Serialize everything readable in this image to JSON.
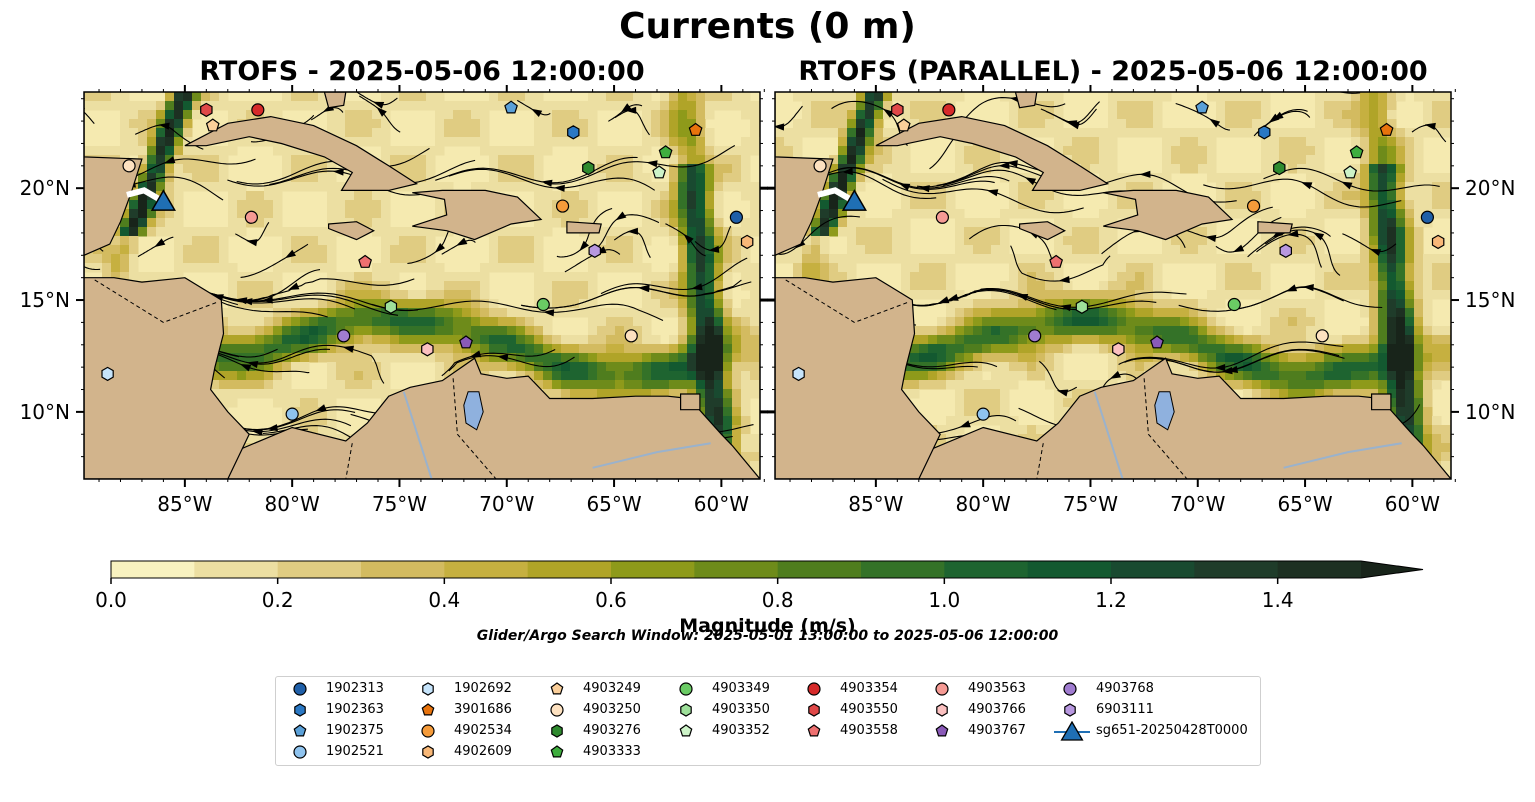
{
  "figure": {
    "title": "Currents (0 m)",
    "panels": [
      {
        "title": "RTOFS - 2025-05-06 12:00:00"
      },
      {
        "title": "RTOFS (PARALLEL) - 2025-05-06 12:00:00"
      }
    ],
    "x_ticks": [
      "85°W",
      "80°W",
      "75°W",
      "70°W",
      "65°W",
      "60°W"
    ],
    "y_ticks": [
      "20°N",
      "15°N",
      "10°N"
    ],
    "extent": {
      "lon_min": -89.7,
      "lon_max": -58.2,
      "lat_min": 7.0,
      "lat_max": 24.3
    },
    "colorbar": {
      "label": "Magnitude (m/s)",
      "ticks": [
        "0.0",
        "0.2",
        "0.4",
        "0.6",
        "0.8",
        "1.0",
        "1.2",
        "1.4"
      ],
      "min": 0.0,
      "max": 1.5,
      "extend": "max",
      "colors": [
        "#f8f2c0",
        "#ecdfa2",
        "#e0cc82",
        "#d3bb60",
        "#c6b040",
        "#b0a428",
        "#8e9a1a",
        "#6e8b1a",
        "#4f7d1e",
        "#347228",
        "#1e6430",
        "#135930",
        "#194a30",
        "#1f3c2a",
        "#1d3022",
        "#18241a"
      ]
    },
    "search_window": "Glider/Argo Search Window: 2025-05-01 13:00:00 to 2025-05-06 12:00:00",
    "colors": {
      "land": "#d2b48c",
      "lake": "#8fb1de",
      "water_low": "#f5eab0",
      "stream": "#000000"
    }
  },
  "legend": [
    {
      "label": "1902313",
      "marker": "circle",
      "color": "#1f5fa8"
    },
    {
      "label": "1902363",
      "marker": "hexagon",
      "color": "#2a78c4"
    },
    {
      "label": "1902375",
      "marker": "pentagon",
      "color": "#5aa0d8"
    },
    {
      "label": "1902521",
      "marker": "circle",
      "color": "#8fc3ee"
    },
    {
      "label": "1902692",
      "marker": "hexagon",
      "color": "#c6e4fb"
    },
    {
      "label": "3901686",
      "marker": "pentagon",
      "color": "#e8730c"
    },
    {
      "label": "4902534",
      "marker": "circle",
      "color": "#f59b3a"
    },
    {
      "label": "4902609",
      "marker": "hexagon",
      "color": "#f8b878"
    },
    {
      "label": "4903249",
      "marker": "pentagon",
      "color": "#fbcf9a"
    },
    {
      "label": "4903250",
      "marker": "circle",
      "color": "#fde1c0"
    },
    {
      "label": "4903276",
      "marker": "hexagon",
      "color": "#2f8a2f"
    },
    {
      "label": "4903333",
      "marker": "pentagon",
      "color": "#3fae3f"
    },
    {
      "label": "4903349",
      "marker": "circle",
      "color": "#6acb64"
    },
    {
      "label": "4903350",
      "marker": "hexagon",
      "color": "#9ee09a"
    },
    {
      "label": "4903352",
      "marker": "pentagon",
      "color": "#cdf3c8"
    },
    {
      "label": "4903354",
      "marker": "circle",
      "color": "#d62a2a"
    },
    {
      "label": "4903550",
      "marker": "hexagon",
      "color": "#e04848"
    },
    {
      "label": "4903558",
      "marker": "pentagon",
      "color": "#ee7070"
    },
    {
      "label": "4903563",
      "marker": "circle",
      "color": "#f59a94"
    },
    {
      "label": "4903766",
      "marker": "hexagon",
      "color": "#fbc0c0"
    },
    {
      "label": "4903767",
      "marker": "pentagon",
      "color": "#8a5ab8"
    },
    {
      "label": "4903768",
      "marker": "circle",
      "color": "#a07cd0"
    },
    {
      "label": "6903111",
      "marker": "hexagon",
      "color": "#b898e0"
    },
    {
      "label": "sg651-20250428T0000",
      "marker": "triangle",
      "color": "#1f6fb4"
    }
  ],
  "floats": [
    {
      "id": "1902313",
      "lon": -59.3,
      "lat": 18.7
    },
    {
      "id": "1902363",
      "lon": -66.9,
      "lat": 22.5
    },
    {
      "id": "1902375",
      "lon": -69.8,
      "lat": 23.6
    },
    {
      "id": "1902521",
      "lon": -80.0,
      "lat": 9.9
    },
    {
      "id": "1902692",
      "lon": -88.6,
      "lat": 11.7
    },
    {
      "id": "3901686",
      "lon": -61.2,
      "lat": 22.6
    },
    {
      "id": "4902534",
      "lon": -67.4,
      "lat": 19.2
    },
    {
      "id": "4902609",
      "lon": -58.8,
      "lat": 17.6
    },
    {
      "id": "4903249",
      "lon": -83.7,
      "lat": 22.8
    },
    {
      "id": "4903250",
      "lon": -64.2,
      "lat": 13.4
    },
    {
      "id": "4903276",
      "lon": -66.2,
      "lat": 20.9
    },
    {
      "id": "4903333",
      "lon": -62.6,
      "lat": 21.6
    },
    {
      "id": "4903349",
      "lon": -68.3,
      "lat": 14.8
    },
    {
      "id": "4903350",
      "lon": -75.4,
      "lat": 14.7
    },
    {
      "id": "4903352",
      "lon": -62.9,
      "lat": 20.7
    },
    {
      "id": "4903354",
      "lon": -81.6,
      "lat": 23.5
    },
    {
      "id": "4903550",
      "lon": -84.0,
      "lat": 23.5
    },
    {
      "id": "4903558",
      "lon": -76.6,
      "lat": 16.7
    },
    {
      "id": "4903563",
      "lon": -81.9,
      "lat": 18.7
    },
    {
      "id": "4903766",
      "lon": -73.7,
      "lat": 12.8
    },
    {
      "id": "4903767",
      "lon": -71.9,
      "lat": 13.1
    },
    {
      "id": "4903768",
      "lon": -77.6,
      "lat": 13.4
    },
    {
      "id": "6903111",
      "lon": -65.9,
      "lat": 17.2
    },
    {
      "id": "4903250",
      "lon": -87.6,
      "lat": 21.0
    }
  ],
  "glider": {
    "id": "sg651-20250428T0000",
    "lon": -86.0,
    "lat": 19.4,
    "track_lon": [
      -87.7,
      -86.9,
      -86.0
    ],
    "track_lat": [
      19.7,
      19.9,
      19.4
    ]
  }
}
